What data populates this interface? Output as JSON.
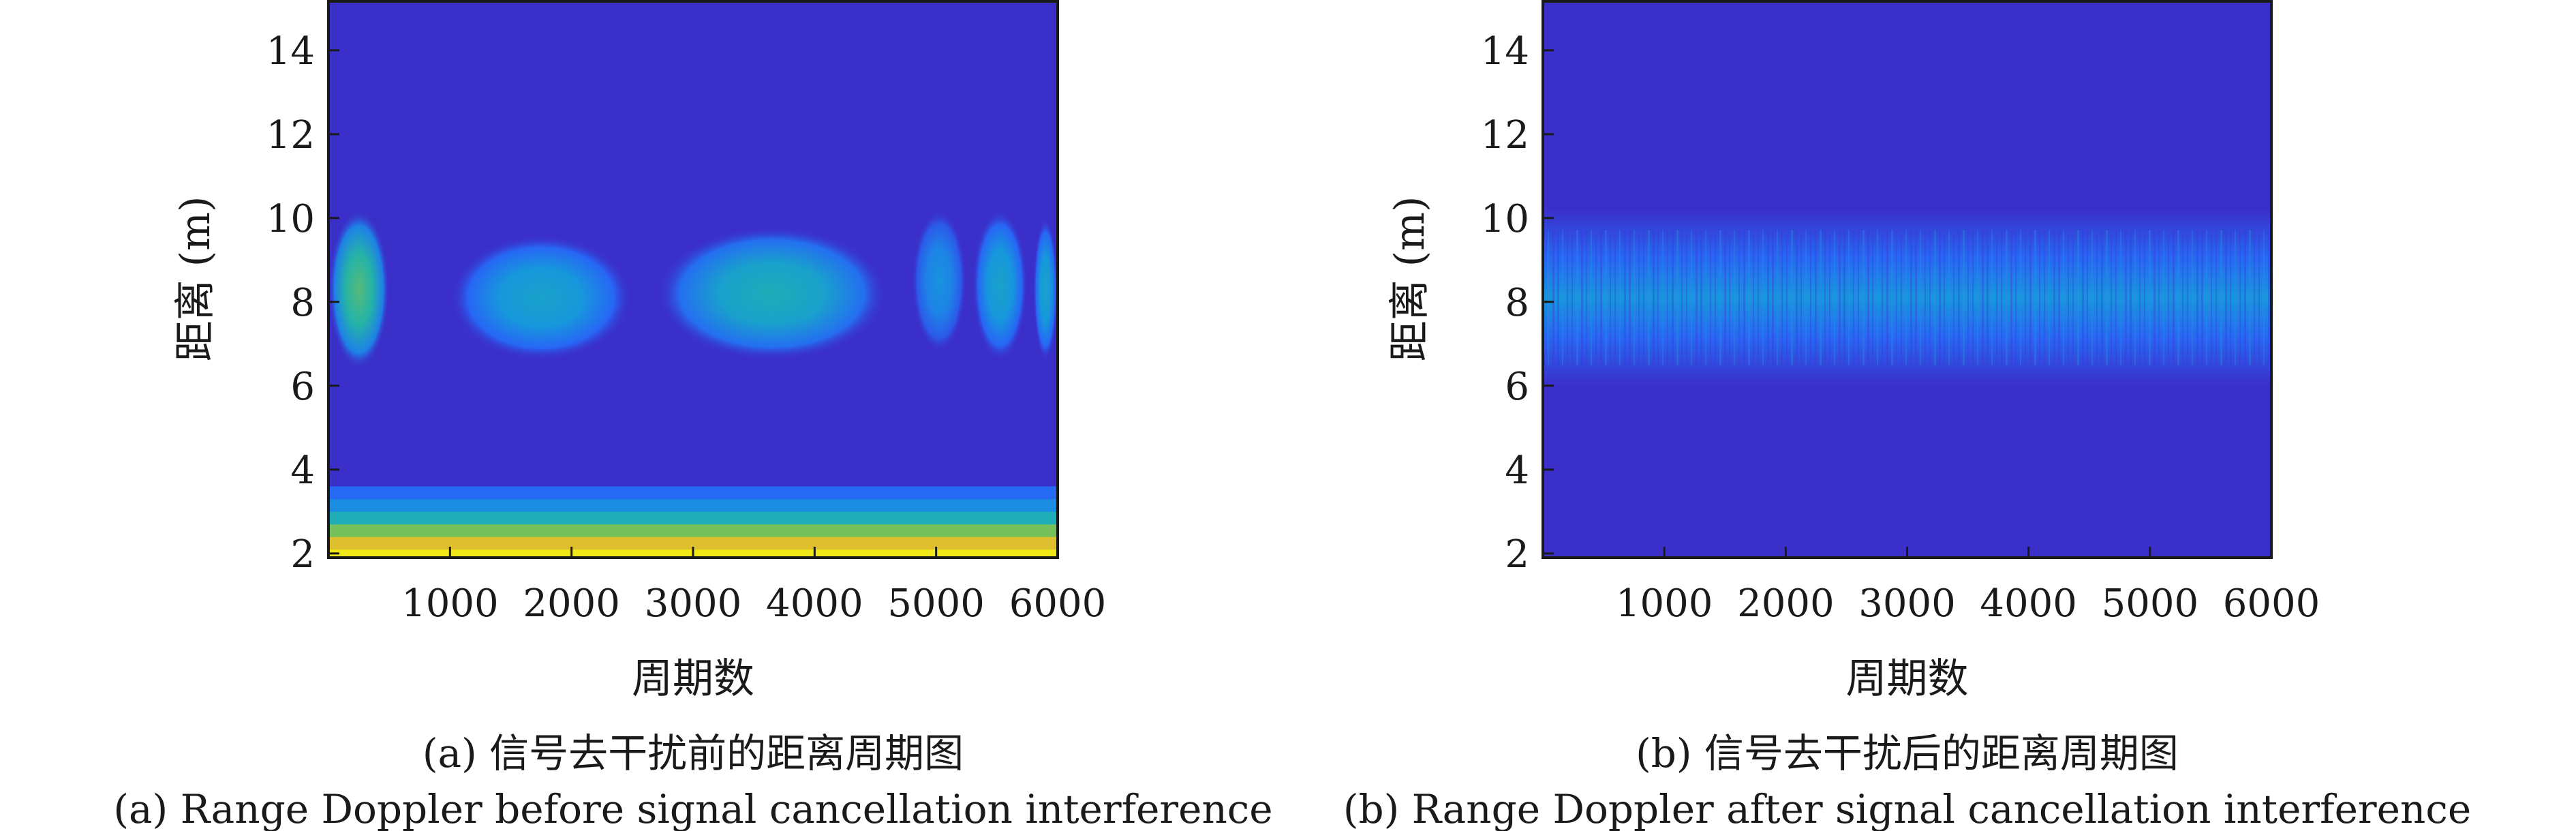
{
  "chart_data": [
    {
      "type": "heatmap",
      "xlabel": "周期数",
      "ylabel": "距离 (m)",
      "xlim": [
        0,
        6000
      ],
      "ylim": [
        1.9,
        15.2
      ],
      "xticks": [
        1000,
        2000,
        3000,
        4000,
        5000,
        6000
      ],
      "yticks": [
        2,
        4,
        6,
        8,
        10,
        12,
        14
      ],
      "grid": false,
      "colormap": "parula",
      "background_color": "#3a2fc9",
      "caption_zh": "(a) 信号去干扰前的距离周期图",
      "caption_en": "(a) Range Doppler before signal cancellation interference",
      "bands": [
        {
          "y": [
            1.9,
            2.1
          ],
          "intensity": 0.95
        },
        {
          "y": [
            2.1,
            2.4
          ],
          "intensity": 0.85
        },
        {
          "y": [
            2.4,
            2.7
          ],
          "intensity": 0.68
        },
        {
          "y": [
            2.7,
            3.0
          ],
          "intensity": 0.48
        },
        {
          "y": [
            3.0,
            3.3
          ],
          "intensity": 0.32
        },
        {
          "y": [
            3.3,
            3.6
          ],
          "intensity": 0.2
        }
      ],
      "blobs": [
        {
          "x": [
            0,
            500
          ],
          "y": [
            6.4,
            10.2
          ],
          "peak": 0.62
        },
        {
          "x": [
            1000,
            2500
          ],
          "y": [
            6.6,
            9.6
          ],
          "peak": 0.42
        },
        {
          "x": [
            2700,
            4600
          ],
          "y": [
            6.6,
            9.8
          ],
          "peak": 0.48
        },
        {
          "x": [
            4800,
            5250
          ],
          "y": [
            6.8,
            10.2
          ],
          "peak": 0.34
        },
        {
          "x": [
            5300,
            5750
          ],
          "y": [
            6.6,
            10.2
          ],
          "peak": 0.42
        },
        {
          "x": [
            5800,
            6000
          ],
          "y": [
            6.6,
            10.0
          ],
          "peak": 0.42
        }
      ]
    },
    {
      "type": "heatmap",
      "xlabel": "周期数",
      "ylabel": "距离 (m)",
      "xlim": [
        0,
        6000
      ],
      "ylim": [
        1.9,
        15.2
      ],
      "xticks": [
        1000,
        2000,
        3000,
        4000,
        5000,
        6000
      ],
      "yticks": [
        2,
        4,
        6,
        8,
        10,
        12,
        14
      ],
      "grid": false,
      "colormap": "parula",
      "background_color": "#3a2fc9",
      "caption_zh": "(b) 信号去干扰后的距离周期图",
      "caption_en": "(b) Range Doppler after signal cancellation interference",
      "bands": [
        {
          "y": [
            6.0,
            10.2
          ],
          "intensity": 0.35,
          "center": 8.1
        }
      ],
      "blobs": []
    }
  ]
}
